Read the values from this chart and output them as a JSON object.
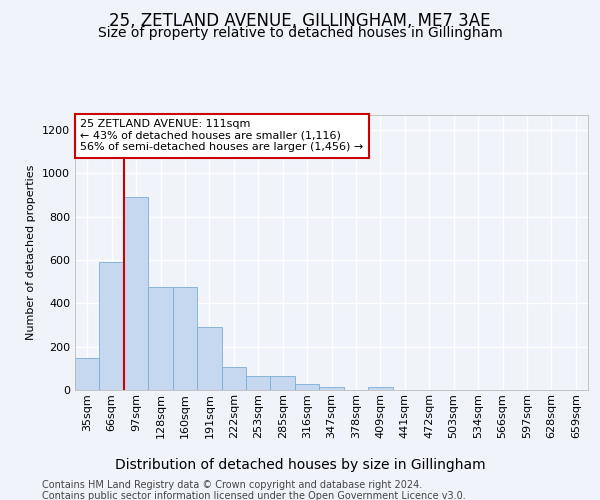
{
  "title1": "25, ZETLAND AVENUE, GILLINGHAM, ME7 3AE",
  "title2": "Size of property relative to detached houses in Gillingham",
  "xlabel": "Distribution of detached houses by size in Gillingham",
  "ylabel": "Number of detached properties",
  "categories": [
    "35sqm",
    "66sqm",
    "97sqm",
    "128sqm",
    "160sqm",
    "191sqm",
    "222sqm",
    "253sqm",
    "285sqm",
    "316sqm",
    "347sqm",
    "378sqm",
    "409sqm",
    "441sqm",
    "472sqm",
    "503sqm",
    "534sqm",
    "566sqm",
    "597sqm",
    "628sqm",
    "659sqm"
  ],
  "values": [
    150,
    590,
    890,
    475,
    475,
    290,
    105,
    65,
    65,
    28,
    15,
    0,
    15,
    0,
    0,
    0,
    0,
    0,
    0,
    0,
    0
  ],
  "bar_color": "#c5d8f0",
  "bar_edge_color": "#7aadd4",
  "annotation_title": "25 ZETLAND AVENUE: 111sqm",
  "annotation_line1": "← 43% of detached houses are smaller (1,116)",
  "annotation_line2": "56% of semi-detached houses are larger (1,456) →",
  "annotation_box_color": "#ffffff",
  "annotation_box_edge": "#cc0000",
  "vline_color": "#cc0000",
  "ylim": [
    0,
    1270
  ],
  "yticks": [
    0,
    200,
    400,
    600,
    800,
    1000,
    1200
  ],
  "footer1": "Contains HM Land Registry data © Crown copyright and database right 2024.",
  "footer2": "Contains public sector information licensed under the Open Government Licence v3.0.",
  "background_color": "#f0f4fa",
  "plot_bg_color": "#f0f4fa",
  "grid_color": "#ffffff",
  "title1_fontsize": 12,
  "title2_fontsize": 10,
  "xlabel_fontsize": 10,
  "ylabel_fontsize": 8,
  "tick_fontsize": 8,
  "annotation_fontsize": 8,
  "footer_fontsize": 7
}
